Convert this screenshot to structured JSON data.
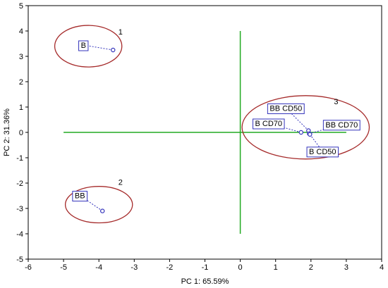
{
  "chart_data": {
    "type": "scatter",
    "xlabel": "PC 1: 65.59%",
    "ylabel": "PC 2: 31.36%",
    "xlim": [
      -6,
      4
    ],
    "ylim": [
      -5,
      5
    ],
    "xticks": [
      -6,
      -5,
      -4,
      -3,
      -2,
      -1,
      0,
      1,
      2,
      3,
      4
    ],
    "yticks": [
      -5,
      -4,
      -3,
      -2,
      -1,
      0,
      1,
      2,
      3,
      4,
      5
    ],
    "grid": false,
    "points": [
      {
        "label": "B",
        "x": -3.6,
        "y": 3.25
      },
      {
        "label": "BB",
        "x": -3.9,
        "y": -3.1
      },
      {
        "label": "B CD70",
        "x": 1.72,
        "y": 0.0
      },
      {
        "label": "BB CD50",
        "x": 1.93,
        "y": 0.07
      },
      {
        "label": "BB CD70",
        "x": 1.95,
        "y": -0.05
      },
      {
        "label": "B CD50",
        "x": 1.97,
        "y": -0.08
      }
    ],
    "clusters": [
      {
        "label": "1",
        "cx": -4.3,
        "cy": 3.4,
        "rx": 0.95,
        "ry": 0.82
      },
      {
        "label": "2",
        "cx": -4.0,
        "cy": -2.85,
        "rx": 0.95,
        "ry": 0.72
      },
      {
        "label": "3",
        "cx": 1.85,
        "cy": 0.2,
        "rx": 1.8,
        "ry": 1.25
      }
    ],
    "reference_lines": {
      "x": 0,
      "y": 0,
      "x_extent": [
        -5,
        3
      ],
      "y_extent": [
        -4,
        4
      ]
    },
    "colors": {
      "points": "#3333bb",
      "ellipse": "#a52a2a",
      "reference": "#22aa22"
    }
  }
}
